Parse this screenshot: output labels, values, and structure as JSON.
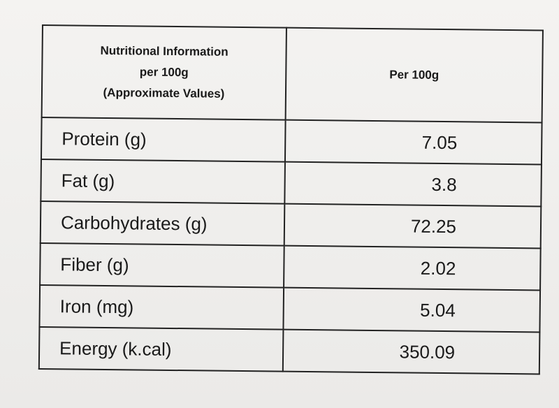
{
  "table": {
    "header": {
      "lines": [
        "Nutritional Information",
        "per 100g",
        "(Approximate Values)"
      ],
      "value_column": "Per 100g"
    },
    "rows": [
      [
        "Protein (g)",
        7.05
      ],
      [
        "Fat (g)",
        3.8
      ],
      [
        "Carbohydrates (g)",
        72.25
      ],
      [
        "Fiber (g)",
        2.02
      ],
      [
        "Iron (mg)",
        5.04
      ],
      [
        "Energy (k.cal)",
        350.09
      ]
    ]
  }
}
